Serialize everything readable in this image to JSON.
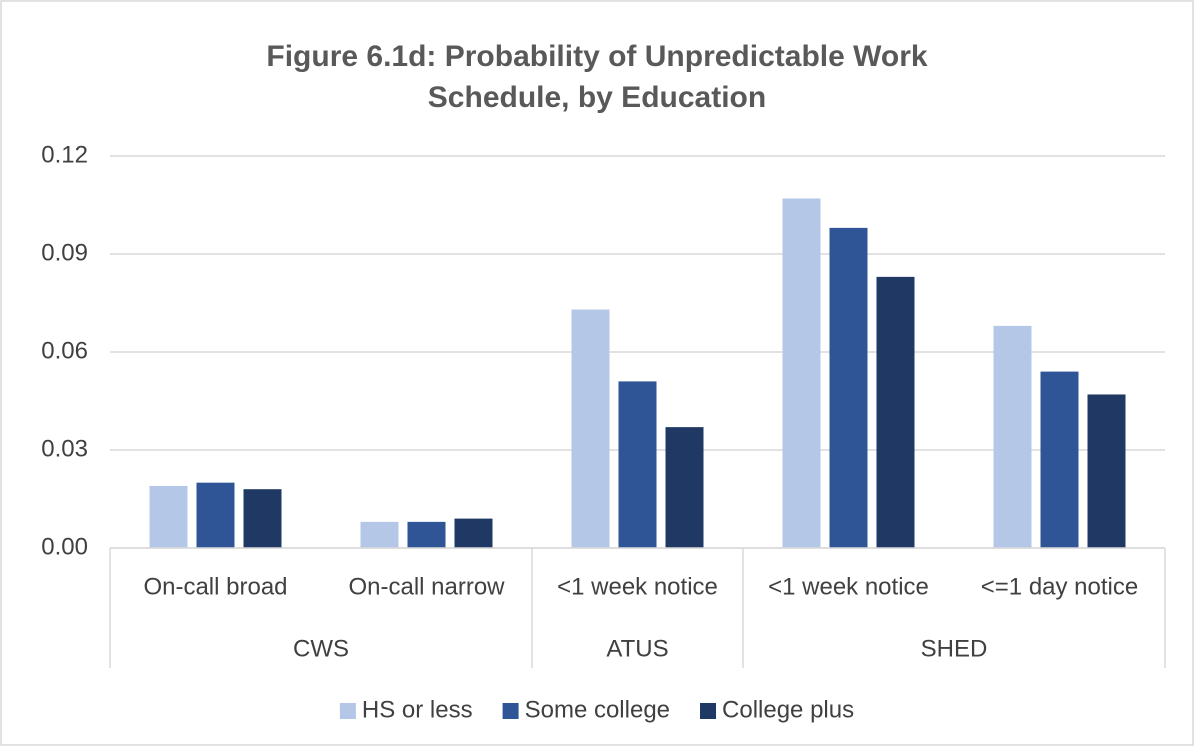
{
  "chart_data": {
    "type": "bar",
    "title": "Figure 6.1d: Probability of Unpredictable Work Schedule, by Education",
    "groups": [
      {
        "label": "CWS",
        "categories": [
          "On-call broad",
          "On-call narrow"
        ]
      },
      {
        "label": "ATUS",
        "categories": [
          "<1 week notice"
        ]
      },
      {
        "label": "SHED",
        "categories": [
          "<1 week notice",
          "<=1 day notice"
        ]
      }
    ],
    "series": [
      {
        "name": "HS or less",
        "color": "#b4c7e7",
        "values": [
          0.019,
          0.008,
          0.073,
          0.107,
          0.068
        ]
      },
      {
        "name": "Some college",
        "color": "#2f5597",
        "values": [
          0.02,
          0.008,
          0.051,
          0.098,
          0.054
        ]
      },
      {
        "name": "College plus",
        "color": "#1f3864",
        "values": [
          0.018,
          0.009,
          0.037,
          0.083,
          0.047
        ]
      }
    ],
    "ylim": [
      0,
      0.12
    ],
    "yticks": [
      {
        "value": 0,
        "label": "0.00"
      },
      0.03,
      0.06,
      0.09,
      0.12
    ],
    "grid": true,
    "legend": "bottom"
  }
}
